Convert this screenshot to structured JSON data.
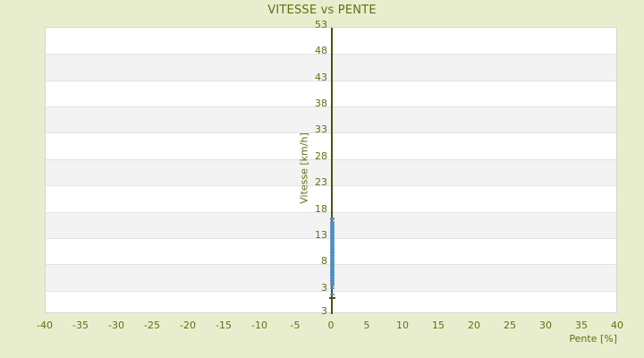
{
  "title": "VITESSE vs PENTE",
  "colors": {
    "background": "#e8eecd",
    "text_olive": "#666d15",
    "axis_line": "#4a530d",
    "point_blue": "#4d8ec3",
    "band_gray": "#f3f3f4",
    "plot_border": "#d4d4d4",
    "plot_background": "#ffffff"
  },
  "chart_data": {
    "type": "scatter",
    "title": "VITESSE vs PENTE",
    "xlabel": "Pente [%]",
    "ylabel": "Vitesse [km/h]",
    "xlim": [
      -40,
      40
    ],
    "ylim": [
      -1.5,
      53
    ],
    "x_ticks": [
      -40,
      -35,
      -30,
      -25,
      -20,
      -15,
      -10,
      -5,
      0,
      5,
      10,
      15,
      20,
      25,
      30,
      35,
      40
    ],
    "y_ticks": [
      53,
      48,
      43,
      38,
      33,
      28,
      23,
      18,
      13,
      8,
      3
    ],
    "y_axis_bottom_label": "3",
    "grid": "horizontal alternating white/gray bands every 5 units, no vertical gridlines",
    "legend": "none",
    "axis_mark_y": 1.6,
    "series": [
      {
        "name": "Vitesse",
        "marker": "horizontal-dash",
        "x": 0,
        "dense_note": "continuous dense strip of overlapping dash markers at pente = 0 %",
        "y_dense": [
          4,
          4.25,
          4.5,
          4.75,
          5,
          5.25,
          5.5,
          5.75,
          6,
          6.25,
          6.5,
          6.75,
          7,
          7.25,
          7.5,
          7.75,
          8,
          8.25,
          8.5,
          8.75,
          9,
          9.25,
          9.5,
          9.75,
          10,
          10.25,
          10.5,
          10.75,
          11,
          11.25,
          11.5,
          11.75,
          12,
          12.25,
          12.5,
          12.75,
          13,
          13.25,
          13.5,
          13.75,
          14,
          14.25,
          14.5,
          14.75,
          15,
          15.25,
          15.5,
          15.75
        ],
        "y_sparse_high": [
          16.1,
          16.5,
          16.8
        ],
        "y_sparse_low": [
          3.5,
          2.3
        ]
      }
    ]
  }
}
